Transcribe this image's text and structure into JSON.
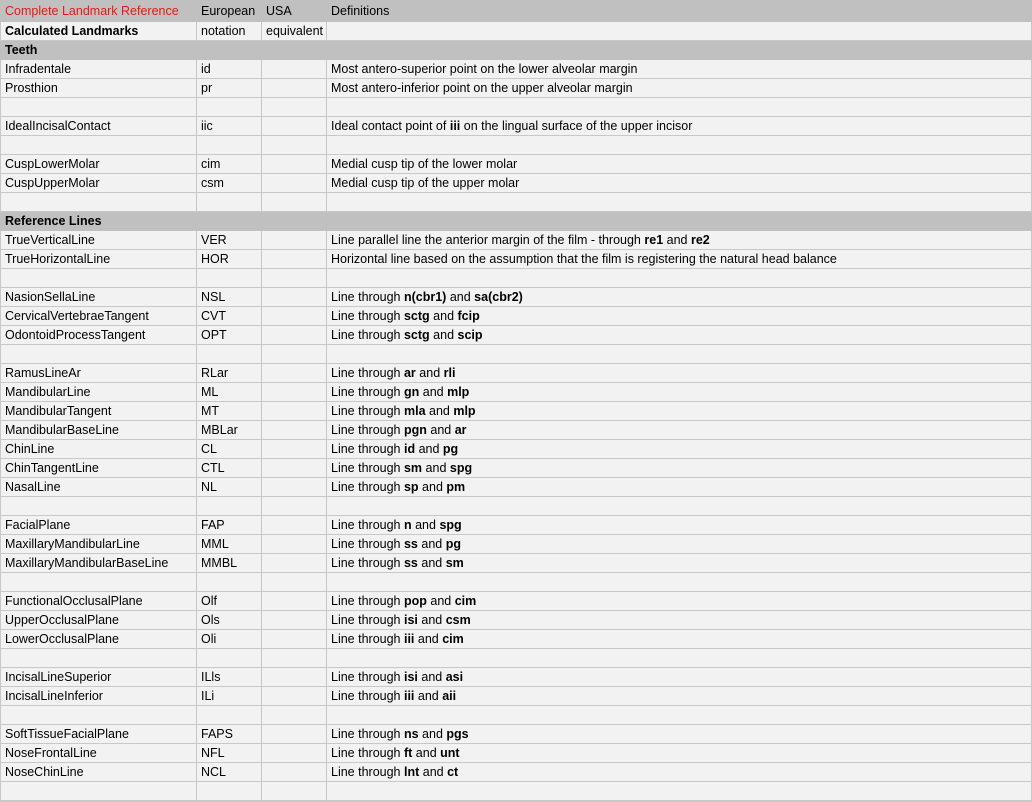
{
  "header": {
    "title": "Complete Landmark Reference",
    "col2": "European",
    "col3": "USA",
    "col4": "Definitions"
  },
  "subheader": {
    "col1": "Calculated Landmarks",
    "col2": "notation",
    "col3": "equivalent",
    "col4": ""
  },
  "colors": {
    "title": "#e81818",
    "header_bg": "#c0c0c0",
    "row_bg": "#f2f2f2"
  },
  "rows": [
    {
      "type": "section",
      "label": "Teeth"
    },
    {
      "type": "row",
      "name": "Infradentale",
      "eu": "id",
      "us": "",
      "def": [
        {
          "t": "Most antero-superior point on the lower alveolar margin"
        }
      ]
    },
    {
      "type": "row",
      "name": "Prosthion",
      "eu": "pr",
      "us": "",
      "def": [
        {
          "t": "Most antero-inferior point on the upper alveolar margin"
        }
      ]
    },
    {
      "type": "empty"
    },
    {
      "type": "row",
      "name": "IdealIncisalContact",
      "eu": "iic",
      "us": "",
      "def": [
        {
          "t": "Ideal contact point of "
        },
        {
          "t": "iii",
          "b": true
        },
        {
          "t": " on the lingual surface of the upper incisor"
        }
      ]
    },
    {
      "type": "empty"
    },
    {
      "type": "row",
      "name": "CuspLowerMolar",
      "eu": "cim",
      "us": "",
      "def": [
        {
          "t": "Medial cusp tip of the lower molar"
        }
      ]
    },
    {
      "type": "row",
      "name": "CuspUpperMolar",
      "eu": "csm",
      "us": "",
      "def": [
        {
          "t": "Medial cusp tip of the upper molar"
        }
      ]
    },
    {
      "type": "empty"
    },
    {
      "type": "section",
      "label": "Reference Lines"
    },
    {
      "type": "row",
      "name": "TrueVerticalLine",
      "eu": "VER",
      "us": "",
      "def": [
        {
          "t": "Line parallel line the anterior margin of the film - through "
        },
        {
          "t": "re1",
          "b": true
        },
        {
          "t": " and "
        },
        {
          "t": "re2",
          "b": true
        }
      ]
    },
    {
      "type": "row",
      "name": "TrueHorizontalLine",
      "eu": "HOR",
      "us": "",
      "def": [
        {
          "t": "Horizontal line based on the assumption that the film is registering the natural head balance"
        }
      ]
    },
    {
      "type": "empty"
    },
    {
      "type": "row",
      "name": "NasionSellaLine",
      "eu": "NSL",
      "us": "",
      "def": [
        {
          "t": "Line through "
        },
        {
          "t": "n(cbr1)",
          "b": true
        },
        {
          "t": " and "
        },
        {
          "t": "sa(cbr2)",
          "b": true
        }
      ]
    },
    {
      "type": "row",
      "name": "CervicalVertebraeTangent",
      "eu": "CVT",
      "us": "",
      "def": [
        {
          "t": "Line through "
        },
        {
          "t": "sctg",
          "b": true
        },
        {
          "t": " and "
        },
        {
          "t": "fcip",
          "b": true
        }
      ]
    },
    {
      "type": "row",
      "name": "OdontoidProcessTangent",
      "eu": "OPT",
      "us": "",
      "def": [
        {
          "t": "Line through "
        },
        {
          "t": "sctg",
          "b": true
        },
        {
          "t": " and "
        },
        {
          "t": "scip",
          "b": true
        }
      ]
    },
    {
      "type": "empty"
    },
    {
      "type": "row",
      "name": "RamusLineAr",
      "eu": "RLar",
      "us": "",
      "def": [
        {
          "t": "Line through "
        },
        {
          "t": "ar",
          "b": true
        },
        {
          "t": " and "
        },
        {
          "t": "rli",
          "b": true
        }
      ]
    },
    {
      "type": "row",
      "name": "MandibularLine",
      "eu": "ML",
      "us": "",
      "def": [
        {
          "t": "Line through "
        },
        {
          "t": "gn",
          "b": true
        },
        {
          "t": " and "
        },
        {
          "t": "mlp",
          "b": true
        }
      ]
    },
    {
      "type": "row",
      "name": "MandibularTangent",
      "eu": "MT",
      "us": "",
      "def": [
        {
          "t": "Line through "
        },
        {
          "t": "mla",
          "b": true
        },
        {
          "t": " and "
        },
        {
          "t": "mlp",
          "b": true
        }
      ]
    },
    {
      "type": "row",
      "name": "MandibularBaseLine",
      "eu": "MBLar",
      "us": "",
      "def": [
        {
          "t": "Line through "
        },
        {
          "t": "pgn",
          "b": true
        },
        {
          "t": " and "
        },
        {
          "t": "ar",
          "b": true
        }
      ]
    },
    {
      "type": "row",
      "name": "ChinLine",
      "eu": "CL",
      "us": "",
      "def": [
        {
          "t": "Line through "
        },
        {
          "t": "id",
          "b": true
        },
        {
          "t": " and "
        },
        {
          "t": "pg",
          "b": true
        }
      ]
    },
    {
      "type": "row",
      "name": "ChinTangentLine",
      "eu": "CTL",
      "us": "",
      "def": [
        {
          "t": "Line through "
        },
        {
          "t": "sm",
          "b": true
        },
        {
          "t": " and "
        },
        {
          "t": "spg",
          "b": true
        }
      ]
    },
    {
      "type": "row",
      "name": "NasalLine",
      "eu": "NL",
      "us": "",
      "def": [
        {
          "t": "Line through "
        },
        {
          "t": "sp",
          "b": true
        },
        {
          "t": " and "
        },
        {
          "t": "pm",
          "b": true
        }
      ]
    },
    {
      "type": "empty"
    },
    {
      "type": "row",
      "name": "FacialPlane",
      "eu": "FAP",
      "us": "",
      "def": [
        {
          "t": "Line through "
        },
        {
          "t": "n",
          "b": true
        },
        {
          "t": " and "
        },
        {
          "t": "spg",
          "b": true
        }
      ]
    },
    {
      "type": "row",
      "name": "MaxillaryMandibularLine",
      "eu": "MML",
      "us": "",
      "def": [
        {
          "t": "Line through "
        },
        {
          "t": "ss",
          "b": true
        },
        {
          "t": " and "
        },
        {
          "t": "pg",
          "b": true
        }
      ]
    },
    {
      "type": "row",
      "name": "MaxillaryMandibularBaseLine",
      "eu": "MMBL",
      "us": "",
      "def": [
        {
          "t": "Line through "
        },
        {
          "t": "ss",
          "b": true
        },
        {
          "t": " and "
        },
        {
          "t": "sm",
          "b": true
        }
      ]
    },
    {
      "type": "empty"
    },
    {
      "type": "row",
      "name": "FunctionalOcclusalPlane",
      "eu": "Olf",
      "us": "",
      "def": [
        {
          "t": "Line through "
        },
        {
          "t": "pop",
          "b": true
        },
        {
          "t": " and "
        },
        {
          "t": "cim",
          "b": true
        }
      ]
    },
    {
      "type": "row",
      "name": "UpperOcclusalPlane",
      "eu": "Ols",
      "us": "",
      "def": [
        {
          "t": "Line through "
        },
        {
          "t": "isi",
          "b": true
        },
        {
          "t": " and "
        },
        {
          "t": "csm",
          "b": true
        }
      ]
    },
    {
      "type": "row",
      "name": "LowerOcclusalPlane",
      "eu": "Oli",
      "us": "",
      "def": [
        {
          "t": "Line through "
        },
        {
          "t": "iii",
          "b": true
        },
        {
          "t": " and "
        },
        {
          "t": "cim",
          "b": true
        }
      ]
    },
    {
      "type": "empty"
    },
    {
      "type": "row",
      "name": "IncisalLineSuperior",
      "eu": "ILls",
      "us": "",
      "def": [
        {
          "t": "Line through "
        },
        {
          "t": "isi",
          "b": true
        },
        {
          "t": " and "
        },
        {
          "t": "asi",
          "b": true
        }
      ]
    },
    {
      "type": "row",
      "name": "IncisalLineInferior",
      "eu": "ILi",
      "us": "",
      "def": [
        {
          "t": "Line through "
        },
        {
          "t": "iii",
          "b": true
        },
        {
          "t": " and "
        },
        {
          "t": "aii",
          "b": true
        }
      ]
    },
    {
      "type": "empty"
    },
    {
      "type": "row",
      "name": "SoftTissueFacialPlane",
      "eu": "FAPS",
      "us": "",
      "def": [
        {
          "t": "Line through "
        },
        {
          "t": "ns",
          "b": true
        },
        {
          "t": " and "
        },
        {
          "t": "pgs",
          "b": true
        }
      ]
    },
    {
      "type": "row",
      "name": "NoseFrontalLine",
      "eu": "NFL",
      "us": "",
      "def": [
        {
          "t": "Line through "
        },
        {
          "t": "ft",
          "b": true
        },
        {
          "t": " and "
        },
        {
          "t": "unt",
          "b": true
        }
      ]
    },
    {
      "type": "row",
      "name": "NoseChinLine",
      "eu": "NCL",
      "us": "",
      "def": [
        {
          "t": "Line through "
        },
        {
          "t": "lnt",
          "b": true
        },
        {
          "t": " and "
        },
        {
          "t": "ct",
          "b": true
        }
      ]
    },
    {
      "type": "empty"
    }
  ]
}
